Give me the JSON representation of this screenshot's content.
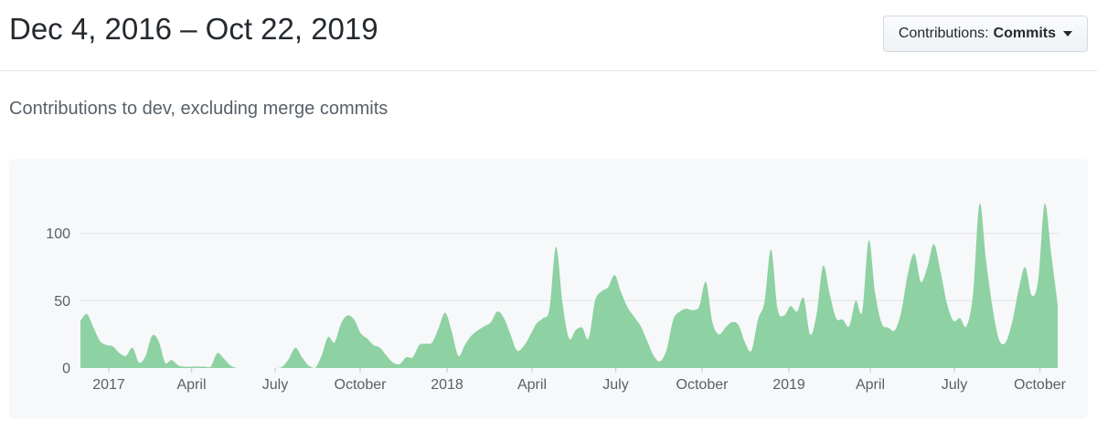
{
  "header": {
    "title": "Dec 4, 2016 – Oct 22, 2019",
    "filter_button": {
      "prefix": "Contributions:",
      "value": "Commits",
      "caret_icon": "dropdown-caret"
    }
  },
  "subtitle": "Contributions to dev, excluding merge commits",
  "colors": {
    "area_green": "#8ed1a2",
    "card_bg": "#f6f8fa",
    "gridline": "#e1e4e8",
    "tick_mark": "#d1d5da",
    "axis_text": "#586069",
    "title_text": "#24292e"
  },
  "chart_data": {
    "type": "area",
    "title": "Commit activity per week",
    "series_name": "Commits",
    "x_start": "Dec 4, 2016",
    "x_end": "Oct 22, 2019",
    "xlabel": "",
    "ylabel": "",
    "ylim": [
      0,
      130
    ],
    "y_ticks": [
      0,
      50,
      100
    ],
    "y_gridlines": [
      50,
      100
    ],
    "grid": "horizontal",
    "legend": "none",
    "x_ticks": [
      {
        "label": "2017",
        "week": 4.35
      },
      {
        "label": "April",
        "week": 17.05
      },
      {
        "label": "July",
        "week": 29.89
      },
      {
        "label": "October",
        "week": 42.94
      },
      {
        "label": "2018",
        "week": 56.27
      },
      {
        "label": "April",
        "week": 69.32
      },
      {
        "label": "July",
        "week": 82.16
      },
      {
        "label": "October",
        "week": 95.41
      },
      {
        "label": "2019",
        "week": 108.74
      },
      {
        "label": "April",
        "week": 121.23
      },
      {
        "label": "July",
        "week": 134.14
      },
      {
        "label": "October",
        "week": 147.26
      }
    ],
    "weekly_commits": [
      35,
      40,
      30,
      20,
      17,
      16,
      11,
      9,
      15,
      4,
      9,
      24,
      20,
      4,
      6,
      2,
      1,
      1,
      1,
      1,
      1,
      11,
      7,
      2,
      0,
      0,
      0,
      0,
      0,
      0,
      0,
      1,
      7,
      15,
      8,
      2,
      0,
      9,
      23,
      19,
      33,
      39,
      36,
      26,
      22,
      17,
      15,
      9,
      4,
      3,
      8,
      8,
      17,
      18,
      19,
      30,
      41,
      27,
      9,
      17,
      24,
      28,
      31,
      34,
      42,
      37,
      25,
      13,
      16,
      24,
      33,
      37,
      44,
      90,
      48,
      22,
      28,
      30,
      22,
      50,
      57,
      60,
      69,
      56,
      45,
      38,
      31,
      20,
      9,
      5,
      14,
      36,
      42,
      44,
      43,
      46,
      64,
      34,
      25,
      30,
      34,
      32,
      19,
      13,
      36,
      49,
      88,
      44,
      39,
      46,
      42,
      52,
      25,
      40,
      76,
      55,
      37,
      36,
      31,
      50,
      42,
      95,
      55,
      33,
      30,
      28,
      42,
      70,
      85,
      64,
      75,
      92,
      72,
      48,
      35,
      37,
      31,
      55,
      122,
      80,
      45,
      21,
      19,
      34,
      58,
      75,
      54,
      65,
      122,
      85,
      47
    ]
  }
}
